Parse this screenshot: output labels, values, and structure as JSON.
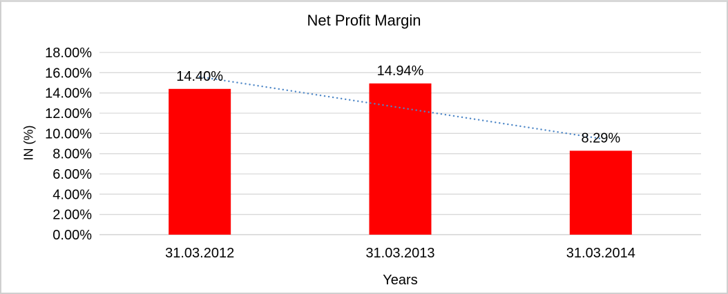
{
  "chart_data": {
    "type": "bar",
    "title": "Net Profit Margin",
    "categories": [
      "31.03.2012",
      "31.03.2013",
      "31.03.2014"
    ],
    "values": [
      14.4,
      14.94,
      8.29
    ],
    "data_labels": [
      "14.40%",
      "14.94%",
      "8.29%"
    ],
    "xlabel": "Years",
    "ylabel": "IN (%)",
    "ylim": [
      0,
      18
    ],
    "ytick_step": 2,
    "ytick_labels": [
      "0.00%",
      "2.00%",
      "4.00%",
      "6.00%",
      "8.00%",
      "10.00%",
      "12.00%",
      "14.00%",
      "16.00%",
      "18.00%"
    ],
    "gridlines": true,
    "legend_position": "none",
    "bar_color": "#FF0000",
    "gridline_color": "#D9D9D9",
    "baseline_color": "#C9C9C9",
    "text_color": "#000000",
    "trendline": {
      "type": "linear",
      "style": "dotted",
      "color": "#4E87C7"
    }
  }
}
